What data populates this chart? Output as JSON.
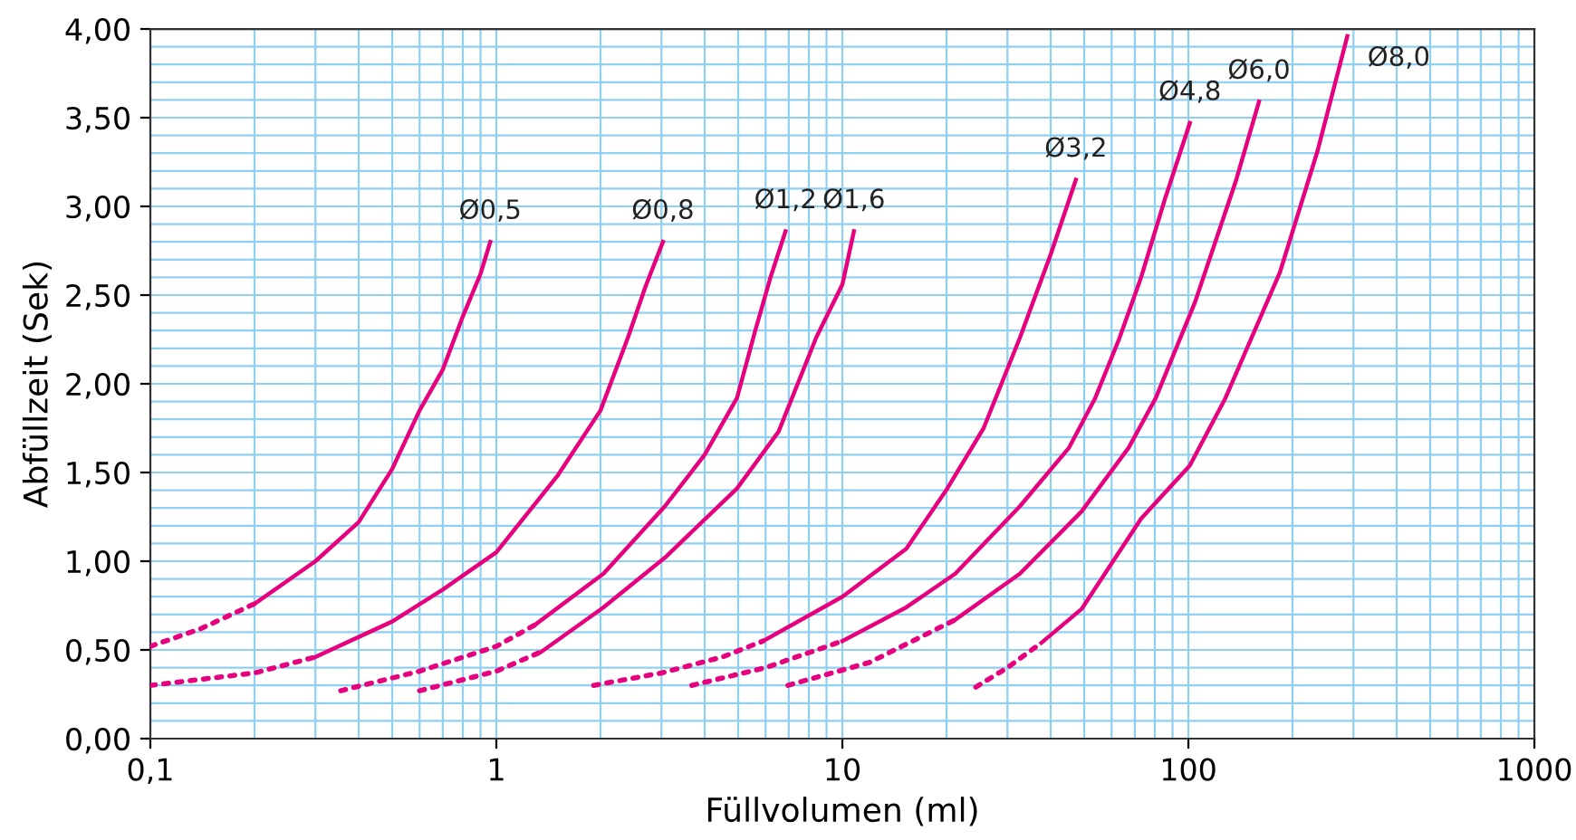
{
  "chart_data": {
    "type": "line",
    "xlabel": "Füllvolumen (ml)",
    "ylabel": "Abfüllzeit (Sek)",
    "log": "x",
    "xlim": [
      0.1,
      1000
    ],
    "xticks": [
      {
        "value": 0.1,
        "label": "0,1"
      },
      1,
      10,
      100,
      1000
    ],
    "ylim": [
      0,
      4
    ],
    "yticks": [
      {
        "value": 0,
        "label": "0,00"
      },
      {
        "value": 0.5,
        "label": "0,50"
      },
      {
        "value": 1,
        "label": "1,00"
      },
      {
        "value": 1.5,
        "label": "1,50"
      },
      {
        "value": 2,
        "label": "2,00"
      },
      {
        "value": 2.5,
        "label": "2,50"
      },
      {
        "value": 3,
        "label": "3,00"
      },
      {
        "value": 3.5,
        "label": "3,50"
      },
      {
        "value": 4,
        "label": "4,00"
      }
    ],
    "grid": true,
    "legend": false,
    "series": [
      {
        "color": "#e6007e",
        "line_style": "dotted",
        "x": [
          0.1,
          0.14,
          0.2
        ],
        "values": [
          0.52,
          0.62,
          0.76
        ]
      },
      {
        "name": "Ø0,5",
        "color": "#e6007e",
        "line_style": "solid",
        "x": [
          0.2,
          0.3,
          0.4,
          0.5,
          0.6,
          0.7,
          0.8,
          0.9,
          0.96
        ],
        "values": [
          0.76,
          1.0,
          1.22,
          1.52,
          1.85,
          2.08,
          2.38,
          2.62,
          2.8
        ]
      },
      {
        "color": "#e6007e",
        "line_style": "dotted",
        "x": [
          0.1,
          0.2,
          0.3
        ],
        "values": [
          0.3,
          0.37,
          0.46
        ]
      },
      {
        "name": "Ø0,8",
        "color": "#e6007e",
        "line_style": "solid",
        "x": [
          0.3,
          0.5,
          0.7,
          1,
          1.5,
          2,
          2.4,
          2.7,
          3.03
        ],
        "values": [
          0.46,
          0.66,
          0.84,
          1.05,
          1.48,
          1.85,
          2.26,
          2.55,
          2.8
        ]
      },
      {
        "color": "#e6007e",
        "line_style": "dotted",
        "x": [
          0.355,
          0.6,
          1,
          1.29
        ],
        "values": [
          0.27,
          0.38,
          0.52,
          0.64
        ]
      },
      {
        "name": "Ø1,2",
        "color": "#e6007e",
        "line_style": "solid",
        "x": [
          1.29,
          2.04,
          3.07,
          4.0,
          4.96,
          5.6,
          6.2,
          6.85
        ],
        "values": [
          0.64,
          0.93,
          1.31,
          1.6,
          1.92,
          2.3,
          2.6,
          2.86
        ]
      },
      {
        "color": "#e6007e",
        "line_style": "dotted",
        "x": [
          0.6,
          1,
          1.35
        ],
        "values": [
          0.27,
          0.38,
          0.49
        ]
      },
      {
        "name": "Ø1,6",
        "color": "#e6007e",
        "line_style": "solid",
        "x": [
          1.35,
          2.04,
          3.07,
          4.96,
          6.54,
          8.4,
          10,
          10.8
        ],
        "values": [
          0.49,
          0.74,
          1.02,
          1.41,
          1.73,
          2.26,
          2.56,
          2.86
        ]
      },
      {
        "color": "#e6007e",
        "line_style": "dotted",
        "x": [
          1.91,
          3,
          4.5,
          5.9
        ],
        "values": [
          0.3,
          0.37,
          0.46,
          0.55
        ]
      },
      {
        "name": "Ø3,2",
        "color": "#e6007e",
        "line_style": "solid",
        "x": [
          5.9,
          10,
          15.3,
          20.1,
          25.6,
          32.6,
          40,
          47.3
        ],
        "values": [
          0.55,
          0.8,
          1.07,
          1.41,
          1.75,
          2.26,
          2.73,
          3.15
        ]
      },
      {
        "color": "#e6007e",
        "line_style": "dotted",
        "x": [
          3.67,
          6,
          10
        ],
        "values": [
          0.3,
          0.4,
          0.55
        ]
      },
      {
        "name": "Ø4,8",
        "color": "#e6007e",
        "line_style": "solid",
        "x": [
          10,
          15.3,
          21.2,
          32.6,
          45.2,
          53.8,
          63,
          73,
          85.5,
          101
        ],
        "values": [
          0.55,
          0.74,
          0.93,
          1.31,
          1.64,
          1.92,
          2.25,
          2.6,
          3.04,
          3.47
        ]
      },
      {
        "color": "#e6007e",
        "line_style": "dotted",
        "x": [
          6.96,
          12,
          21.2
        ],
        "values": [
          0.3,
          0.43,
          0.67
        ]
      },
      {
        "name": "Ø6,0",
        "color": "#e6007e",
        "line_style": "solid",
        "x": [
          21.2,
          32.6,
          49.1,
          67.2,
          80.5,
          104.5,
          137,
          160
        ],
        "values": [
          0.67,
          0.93,
          1.28,
          1.64,
          1.92,
          2.46,
          3.14,
          3.59
        ]
      },
      {
        "color": "#e6007e",
        "line_style": "dotted",
        "x": [
          24.3,
          30,
          37.6
        ],
        "values": [
          0.29,
          0.4,
          0.54
        ]
      },
      {
        "name": "Ø8,0",
        "color": "#e6007e",
        "line_style": "solid",
        "x": [
          37.6,
          49.1,
          73,
          101,
          128,
          184,
          236,
          288
        ],
        "values": [
          0.54,
          0.73,
          1.24,
          1.54,
          1.92,
          2.63,
          3.31,
          3.96
        ]
      }
    ]
  }
}
